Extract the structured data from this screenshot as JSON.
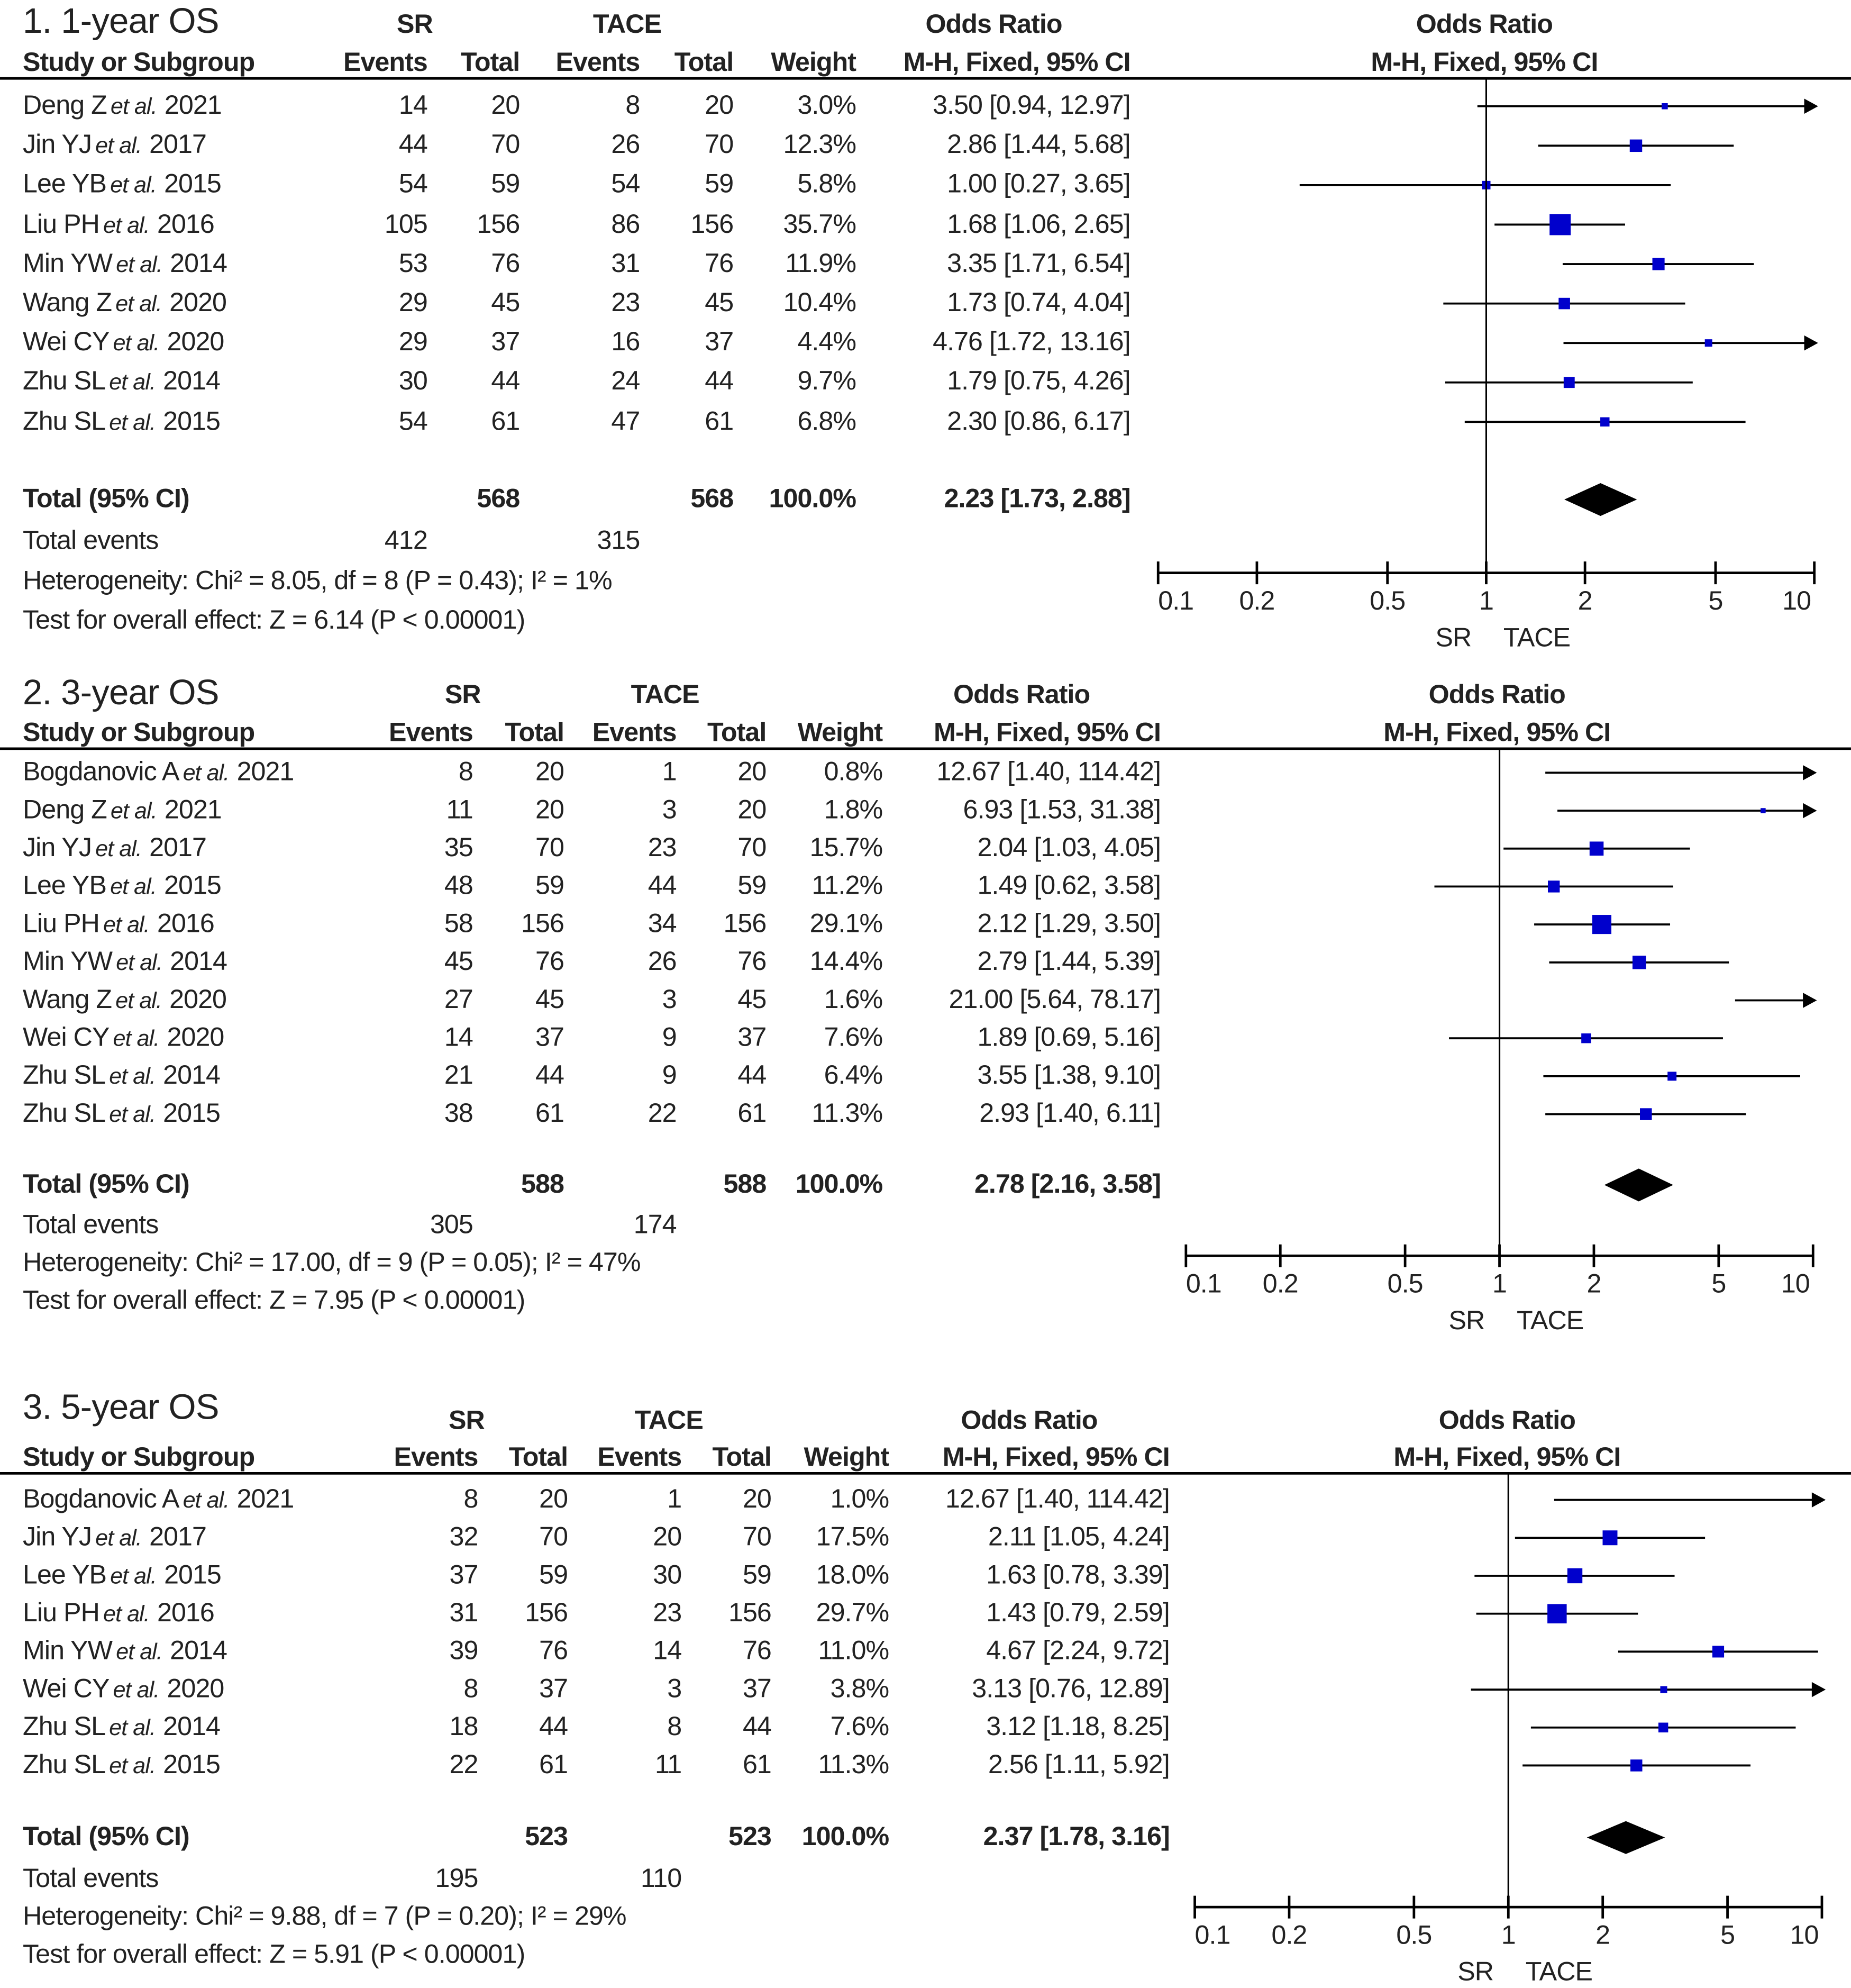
{
  "header": {
    "sr": "SR",
    "tace": "TACE",
    "or": "Odds Ratio",
    "study": "Study or Subgroup",
    "events": "Events",
    "total": "Total",
    "weight": "Weight",
    "method": "M-H, Fixed, 95% CI",
    "axis_left": "SR",
    "axis_right": "TACE"
  },
  "chart_data": [
    {
      "type": "forest",
      "title": "1. 1-year OS",
      "xscale": "log",
      "xlim": [
        0.1,
        10
      ],
      "xticks": [
        "0.1",
        "0.2",
        "0.5",
        "1",
        "2",
        "5",
        "10"
      ],
      "studies": [
        {
          "author": "Deng Z",
          "etal": "et al.",
          "year": "2021",
          "sr_events": "14",
          "sr_total": "20",
          "tace_events": "8",
          "tace_total": "20",
          "weight": "3.0%",
          "ci_text": "3.50 [0.94, 12.97]",
          "or": 3.5,
          "lo": 0.94,
          "hi": 12.97,
          "w": 3.0
        },
        {
          "author": "Jin YJ",
          "etal": "et al.",
          "year": "2017",
          "sr_events": "44",
          "sr_total": "70",
          "tace_events": "26",
          "tace_total": "70",
          "weight": "12.3%",
          "ci_text": "2.86 [1.44, 5.68]",
          "or": 2.86,
          "lo": 1.44,
          "hi": 5.68,
          "w": 12.3
        },
        {
          "author": "Lee YB",
          "etal": "et al.",
          "year": "2015",
          "sr_events": "54",
          "sr_total": "59",
          "tace_events": "54",
          "tace_total": "59",
          "weight": "5.8%",
          "ci_text": "1.00 [0.27, 3.65]",
          "or": 1.0,
          "lo": 0.27,
          "hi": 3.65,
          "w": 5.8
        },
        {
          "author": "Liu PH",
          "etal": "et al.",
          "year": "2016",
          "sr_events": "105",
          "sr_total": "156",
          "tace_events": "86",
          "tace_total": "156",
          "weight": "35.7%",
          "ci_text": "1.68 [1.06, 2.65]",
          "or": 1.68,
          "lo": 1.06,
          "hi": 2.65,
          "w": 35.7
        },
        {
          "author": "Min YW",
          "etal": "et al.",
          "year": "2014",
          "sr_events": "53",
          "sr_total": "76",
          "tace_events": "31",
          "tace_total": "76",
          "weight": "11.9%",
          "ci_text": "3.35 [1.71, 6.54]",
          "or": 3.35,
          "lo": 1.71,
          "hi": 6.54,
          "w": 11.9
        },
        {
          "author": "Wang Z",
          "etal": "et al.",
          "year": "2020",
          "sr_events": "29",
          "sr_total": "45",
          "tace_events": "23",
          "tace_total": "45",
          "weight": "10.4%",
          "ci_text": "1.73 [0.74, 4.04]",
          "or": 1.73,
          "lo": 0.74,
          "hi": 4.04,
          "w": 10.4
        },
        {
          "author": "Wei CY",
          "etal": "et al.",
          "year": "2020",
          "sr_events": "29",
          "sr_total": "37",
          "tace_events": "16",
          "tace_total": "37",
          "weight": "4.4%",
          "ci_text": "4.76 [1.72, 13.16]",
          "or": 4.76,
          "lo": 1.72,
          "hi": 13.16,
          "w": 4.4
        },
        {
          "author": "Zhu SL",
          "etal": "et al.",
          "year": "2014",
          "sr_events": "30",
          "sr_total": "44",
          "tace_events": "24",
          "tace_total": "44",
          "weight": "9.7%",
          "ci_text": "1.79 [0.75, 4.26]",
          "or": 1.79,
          "lo": 0.75,
          "hi": 4.26,
          "w": 9.7
        },
        {
          "author": "Zhu SL",
          "etal": "et al.",
          "year": "2015",
          "sr_events": "54",
          "sr_total": "61",
          "tace_events": "47",
          "tace_total": "61",
          "weight": "6.8%",
          "ci_text": "2.30 [0.86, 6.17]",
          "or": 2.3,
          "lo": 0.86,
          "hi": 6.17,
          "w": 6.8
        }
      ],
      "total": {
        "label": "Total (95% CI)",
        "sr_total": "568",
        "tace_total": "568",
        "weight": "100.0%",
        "ci_text": "2.23 [1.73, 2.88]",
        "or": 2.23,
        "lo": 1.73,
        "hi": 2.88
      },
      "total_events": {
        "label": "Total events",
        "sr": "412",
        "tace": "315"
      },
      "heterogeneity": "Heterogeneity: Chi² = 8.05, df = 8 (P = 0.43); I² = 1%",
      "overall": "Test for overall effect: Z = 6.14 (P < 0.00001)"
    },
    {
      "type": "forest",
      "title": "2. 3-year OS",
      "xscale": "log",
      "xlim": [
        0.1,
        10
      ],
      "xticks": [
        "0.1",
        "0.2",
        "0.5",
        "1",
        "2",
        "5",
        "10"
      ],
      "studies": [
        {
          "author": "Bogdanovic A",
          "etal": "et al.",
          "year": "2021",
          "sr_events": "8",
          "sr_total": "20",
          "tace_events": "1",
          "tace_total": "20",
          "weight": "0.8%",
          "ci_text": "12.67 [1.40, 114.42]",
          "or": 12.67,
          "lo": 1.4,
          "hi": 114.42,
          "w": 0.8
        },
        {
          "author": "Deng Z",
          "etal": "et al.",
          "year": "2021",
          "sr_events": "11",
          "sr_total": "20",
          "tace_events": "3",
          "tace_total": "20",
          "weight": "1.8%",
          "ci_text": "6.93 [1.53, 31.38]",
          "or": 6.93,
          "lo": 1.53,
          "hi": 31.38,
          "w": 1.8
        },
        {
          "author": "Jin YJ",
          "etal": "et al.",
          "year": "2017",
          "sr_events": "35",
          "sr_total": "70",
          "tace_events": "23",
          "tace_total": "70",
          "weight": "15.7%",
          "ci_text": "2.04 [1.03, 4.05]",
          "or": 2.04,
          "lo": 1.03,
          "hi": 4.05,
          "w": 15.7
        },
        {
          "author": "Lee YB",
          "etal": "et al.",
          "year": "2015",
          "sr_events": "48",
          "sr_total": "59",
          "tace_events": "44",
          "tace_total": "59",
          "weight": "11.2%",
          "ci_text": "1.49 [0.62, 3.58]",
          "or": 1.49,
          "lo": 0.62,
          "hi": 3.58,
          "w": 11.2
        },
        {
          "author": "Liu PH",
          "etal": "et al.",
          "year": "2016",
          "sr_events": "58",
          "sr_total": "156",
          "tace_events": "34",
          "tace_total": "156",
          "weight": "29.1%",
          "ci_text": "2.12 [1.29, 3.50]",
          "or": 2.12,
          "lo": 1.29,
          "hi": 3.5,
          "w": 29.1
        },
        {
          "author": "Min YW",
          "etal": "et al.",
          "year": "2014",
          "sr_events": "45",
          "sr_total": "76",
          "tace_events": "26",
          "tace_total": "76",
          "weight": "14.4%",
          "ci_text": "2.79 [1.44, 5.39]",
          "or": 2.79,
          "lo": 1.44,
          "hi": 5.39,
          "w": 14.4
        },
        {
          "author": "Wang Z",
          "etal": "et al.",
          "year": "2020",
          "sr_events": "27",
          "sr_total": "45",
          "tace_events": "3",
          "tace_total": "45",
          "weight": "1.6%",
          "ci_text": "21.00 [5.64, 78.17]",
          "or": 21.0,
          "lo": 5.64,
          "hi": 78.17,
          "w": 1.6
        },
        {
          "author": "Wei CY",
          "etal": "et al.",
          "year": "2020",
          "sr_events": "14",
          "sr_total": "37",
          "tace_events": "9",
          "tace_total": "37",
          "weight": "7.6%",
          "ci_text": "1.89 [0.69, 5.16]",
          "or": 1.89,
          "lo": 0.69,
          "hi": 5.16,
          "w": 7.6
        },
        {
          "author": "Zhu SL",
          "etal": "et al.",
          "year": "2014",
          "sr_events": "21",
          "sr_total": "44",
          "tace_events": "9",
          "tace_total": "44",
          "weight": "6.4%",
          "ci_text": "3.55 [1.38, 9.10]",
          "or": 3.55,
          "lo": 1.38,
          "hi": 9.1,
          "w": 6.4
        },
        {
          "author": "Zhu SL",
          "etal": "et al.",
          "year": "2015",
          "sr_events": "38",
          "sr_total": "61",
          "tace_events": "22",
          "tace_total": "61",
          "weight": "11.3%",
          "ci_text": "2.93 [1.40, 6.11]",
          "or": 2.93,
          "lo": 1.4,
          "hi": 6.11,
          "w": 11.3
        }
      ],
      "total": {
        "label": "Total (95% CI)",
        "sr_total": "588",
        "tace_total": "588",
        "weight": "100.0%",
        "ci_text": "2.78 [2.16, 3.58]",
        "or": 2.78,
        "lo": 2.16,
        "hi": 3.58
      },
      "total_events": {
        "label": "Total events",
        "sr": "305",
        "tace": "174"
      },
      "heterogeneity": "Heterogeneity: Chi² = 17.00, df = 9 (P = 0.05); I² = 47%",
      "overall": "Test for overall effect: Z = 7.95 (P < 0.00001)"
    },
    {
      "type": "forest",
      "title": "3. 5-year OS",
      "xscale": "log",
      "xlim": [
        0.1,
        10
      ],
      "xticks": [
        "0.1",
        "0.2",
        "0.5",
        "1",
        "2",
        "5",
        "10"
      ],
      "studies": [
        {
          "author": "Bogdanovic A",
          "etal": "et al.",
          "year": "2021",
          "sr_events": "8",
          "sr_total": "20",
          "tace_events": "1",
          "tace_total": "20",
          "weight": "1.0%",
          "ci_text": "12.67 [1.40, 114.42]",
          "or": 12.67,
          "lo": 1.4,
          "hi": 114.42,
          "w": 1.0
        },
        {
          "author": "Jin YJ",
          "etal": "et al.",
          "year": "2017",
          "sr_events": "32",
          "sr_total": "70",
          "tace_events": "20",
          "tace_total": "70",
          "weight": "17.5%",
          "ci_text": "2.11 [1.05, 4.24]",
          "or": 2.11,
          "lo": 1.05,
          "hi": 4.24,
          "w": 17.5
        },
        {
          "author": "Lee YB",
          "etal": "et al.",
          "year": "2015",
          "sr_events": "37",
          "sr_total": "59",
          "tace_events": "30",
          "tace_total": "59",
          "weight": "18.0%",
          "ci_text": "1.63 [0.78, 3.39]",
          "or": 1.63,
          "lo": 0.78,
          "hi": 3.39,
          "w": 18.0
        },
        {
          "author": "Liu PH",
          "etal": "et al.",
          "year": "2016",
          "sr_events": "31",
          "sr_total": "156",
          "tace_events": "23",
          "tace_total": "156",
          "weight": "29.7%",
          "ci_text": "1.43 [0.79, 2.59]",
          "or": 1.43,
          "lo": 0.79,
          "hi": 2.59,
          "w": 29.7
        },
        {
          "author": "Min YW",
          "etal": "et al.",
          "year": "2014",
          "sr_events": "39",
          "sr_total": "76",
          "tace_events": "14",
          "tace_total": "76",
          "weight": "11.0%",
          "ci_text": "4.67 [2.24, 9.72]",
          "or": 4.67,
          "lo": 2.24,
          "hi": 9.72,
          "w": 11.0
        },
        {
          "author": "Wei CY",
          "etal": "et al.",
          "year": "2020",
          "sr_events": "8",
          "sr_total": "37",
          "tace_events": "3",
          "tace_total": "37",
          "weight": "3.8%",
          "ci_text": "3.13 [0.76, 12.89]",
          "or": 3.13,
          "lo": 0.76,
          "hi": 12.89,
          "w": 3.8
        },
        {
          "author": "Zhu SL",
          "etal": "et al.",
          "year": "2014",
          "sr_events": "18",
          "sr_total": "44",
          "tace_events": "8",
          "tace_total": "44",
          "weight": "7.6%",
          "ci_text": "3.12 [1.18, 8.25]",
          "or": 3.12,
          "lo": 1.18,
          "hi": 8.25,
          "w": 7.6
        },
        {
          "author": "Zhu SL",
          "etal": "et al.",
          "year": "2015",
          "sr_events": "22",
          "sr_total": "61",
          "tace_events": "11",
          "tace_total": "61",
          "weight": "11.3%",
          "ci_text": "2.56 [1.11, 5.92]",
          "or": 2.56,
          "lo": 1.11,
          "hi": 5.92,
          "w": 11.3
        }
      ],
      "total": {
        "label": "Total (95% CI)",
        "sr_total": "523",
        "tace_total": "523",
        "weight": "100.0%",
        "ci_text": "2.37 [1.78, 3.16]",
        "or": 2.37,
        "lo": 1.78,
        "hi": 3.16
      },
      "total_events": {
        "label": "Total events",
        "sr": "195",
        "tace": "110"
      },
      "heterogeneity": "Heterogeneity: Chi² = 9.88, df = 7 (P = 0.20); I² = 29%",
      "overall": "Test for overall effect: Z = 5.91 (P < 0.00001)"
    }
  ],
  "colors": {
    "square": "#0000cc",
    "line": "#000000",
    "diamond": "#000000"
  }
}
